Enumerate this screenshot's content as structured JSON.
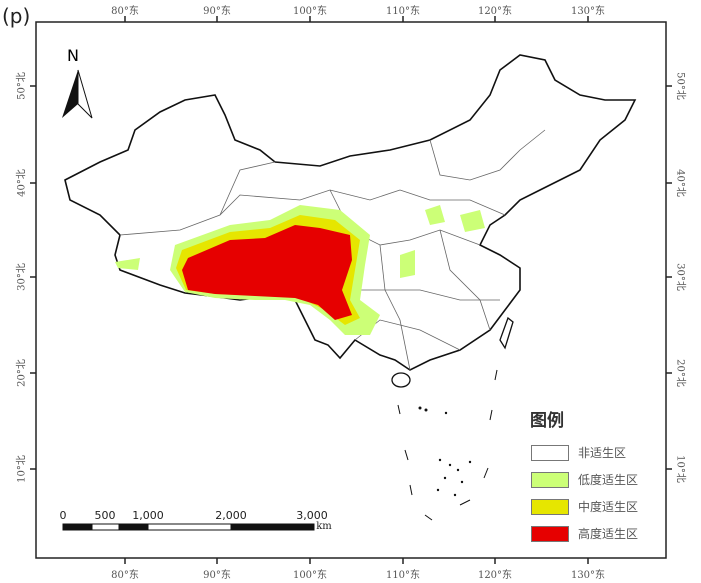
{
  "panel_label": "(p)",
  "north_arrow": "N",
  "lon_labels": [
    "80°东",
    "90°东",
    "100°东",
    "110°东",
    "120°东",
    "130°东"
  ],
  "lat_labels": [
    "50°北",
    "40°北",
    "30°北",
    "20°北",
    "10°北"
  ],
  "legend": {
    "title": "图例",
    "items": [
      {
        "label": "非适生区",
        "color": "#ffffff"
      },
      {
        "label": "低度适生区",
        "color": "#ccff77"
      },
      {
        "label": "中度适生区",
        "color": "#e6e600"
      },
      {
        "label": "高度适生区",
        "color": "#e60000"
      }
    ]
  },
  "scale_bar": {
    "labels": [
      "0",
      "500",
      "1,000",
      "2,000",
      "3,000"
    ],
    "unit": "km"
  }
}
